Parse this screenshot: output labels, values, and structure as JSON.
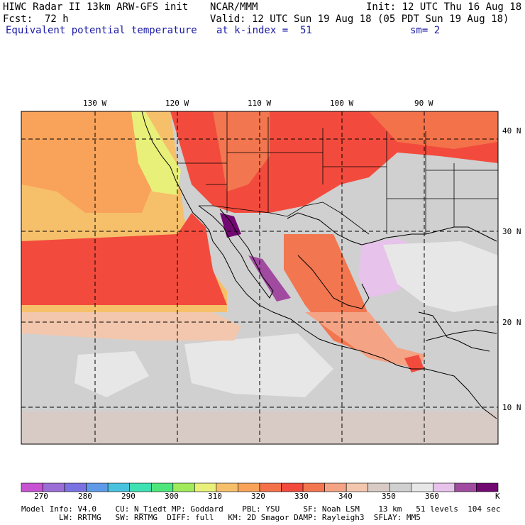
{
  "header": {
    "model": "HIWC Radar II 13km ARW-GFS init",
    "center": "NCAR/MMM",
    "init": "Init: 12 UTC Thu 16 Aug 18",
    "fcst": "Fcst:  72 h",
    "valid": "Valid: 12 UTC Sun 19 Aug 18 (05 PDT Sun 19 Aug 18)",
    "field": "Equivalent potential temperature",
    "level": "at k-index =  51",
    "smooth": "sm= 2"
  },
  "axes": {
    "lon_labels": [
      "130 W",
      "120 W",
      "110 W",
      "100 W",
      "90 W"
    ],
    "lat_labels": [
      "40 N",
      "30 N",
      "20 N",
      "10 N"
    ]
  },
  "colorbar": {
    "colors": [
      "#c752d2",
      "#9a6ed6",
      "#7b72e2",
      "#5e9ae8",
      "#49c2e0",
      "#3ee2b2",
      "#4ee67a",
      "#a0ea5c",
      "#e8f07a",
      "#f6c06a",
      "#f9a35a",
      "#f4724a",
      "#f24b3d",
      "#f2764f",
      "#f4a384",
      "#f2c7ad",
      "#d8cbc6",
      "#d0d0d0",
      "#e7e7e7",
      "#e7c2ea",
      "#a14ba0",
      "#720872"
    ],
    "labels": [
      "270",
      "280",
      "290",
      "300",
      "310",
      "320",
      "330",
      "340",
      "350",
      "360"
    ],
    "unit": "K"
  },
  "footer": {
    "line1": "Model Info: V4.0    CU: N_Tiedt MP: Goddard    PBL: YSU     SF: Noah LSM    13 km   51 levels  104 sec",
    "line2": "        LW: RRTMG   SW: RRTMG  DIFF: full   KM: 2D Smagor DAMP: Rayleigh3  SFLAY: MM5"
  }
}
